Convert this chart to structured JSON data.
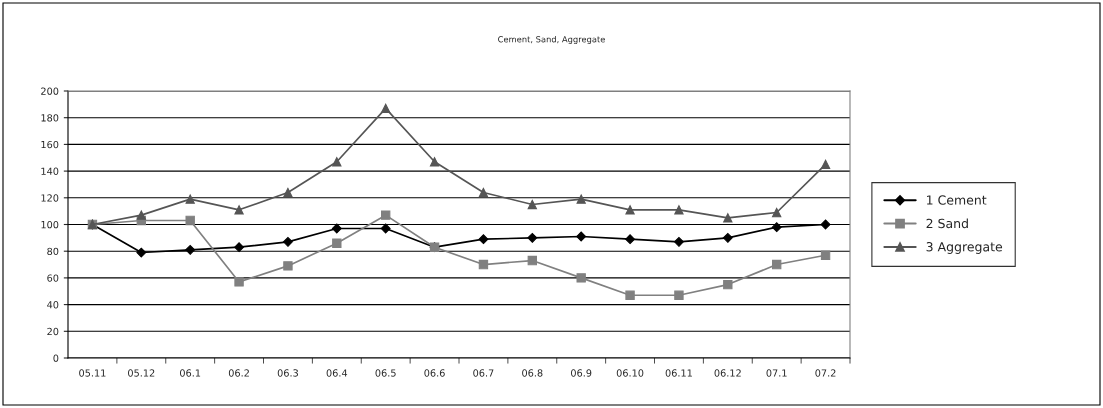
{
  "chart_data": {
    "type": "line",
    "title": "Cement, Sand, Aggregate",
    "categories": [
      "05.11",
      "05.12",
      "06.1",
      "06.2",
      "06.3",
      "06.4",
      "06.5",
      "06.6",
      "06.7",
      "06.8",
      "06.9",
      "06.10",
      "06.11",
      "06.12",
      "07.1",
      "07.2"
    ],
    "series": [
      {
        "name": "1 Cement",
        "color": "#000000",
        "marker": "diamond",
        "values": [
          100,
          79,
          81,
          83,
          87,
          97,
          97,
          83,
          89,
          90,
          91,
          89,
          87,
          90,
          98,
          100
        ]
      },
      {
        "name": "2 Sand",
        "color": "#808080",
        "marker": "square",
        "values": [
          100,
          103,
          103,
          57,
          69,
          86,
          107,
          83,
          70,
          73,
          60,
          47,
          47,
          55,
          70,
          77
        ]
      },
      {
        "name": "3 Aggregate",
        "color": "#555555",
        "marker": "triangle",
        "values": [
          100,
          107,
          119,
          111,
          124,
          147,
          187,
          147,
          124,
          115,
          119,
          111,
          111,
          105,
          109,
          145
        ]
      }
    ],
    "ylim": [
      0,
      200
    ],
    "yticks": [
      0,
      20,
      40,
      60,
      80,
      100,
      120,
      140,
      160,
      180,
      200
    ],
    "grid": "y",
    "legend": "right",
    "line_style": "solid"
  }
}
